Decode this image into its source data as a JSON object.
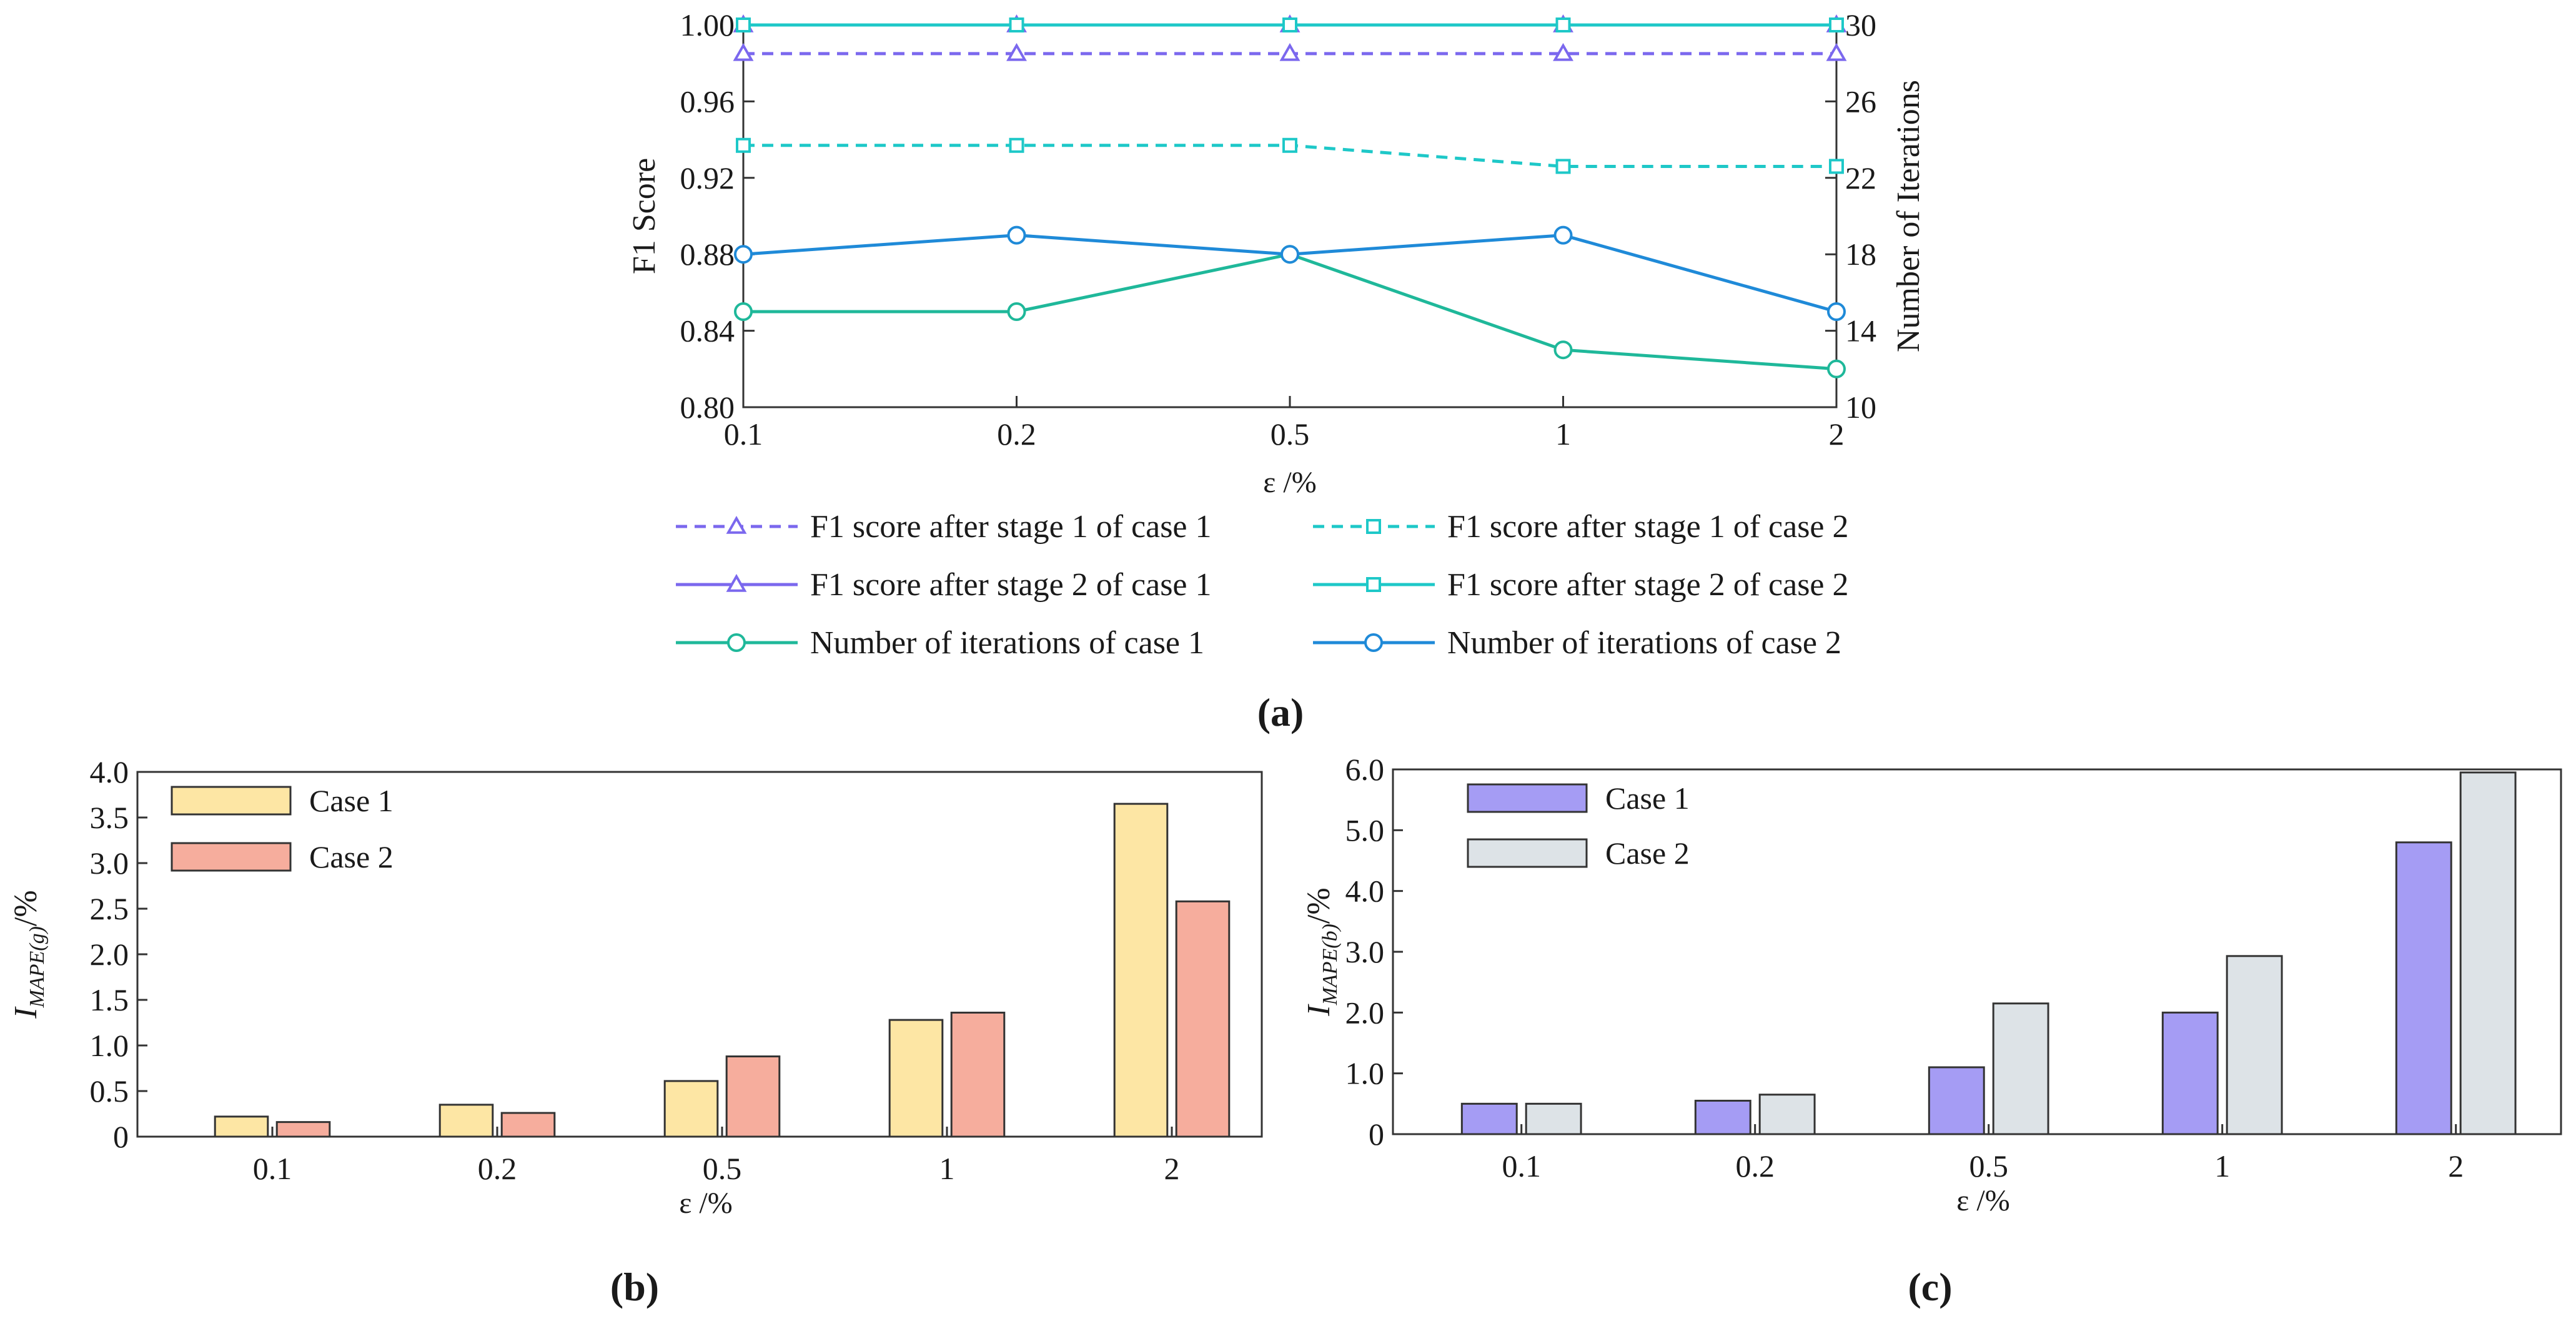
{
  "chart_data": [
    {
      "panel": "(a)",
      "type": "line",
      "x_categories": [
        "0.1",
        "0.2",
        "0.5",
        "1",
        "2"
      ],
      "xlabel": "ε /%",
      "ylabel_left": "F1 Score",
      "ylabel_right": "Number of Iterations",
      "ylim_left": [
        0.8,
        1.0
      ],
      "yticks_left": [
        "0.80",
        "0.84",
        "0.88",
        "0.92",
        "0.96",
        "1.00"
      ],
      "ylim_right": [
        10,
        30
      ],
      "yticks_right": [
        "10",
        "14",
        "18",
        "22",
        "26",
        "30"
      ],
      "grid": false,
      "legend_position": "bottom",
      "series": [
        {
          "name": "F1 score after stage 1 of case 1",
          "axis": "left",
          "values": [
            0.985,
            0.985,
            0.985,
            0.985,
            0.985
          ],
          "color": "#7b68ee",
          "dash": true,
          "marker": "triangle"
        },
        {
          "name": "F1 score after stage 1 of case 2",
          "axis": "left",
          "values": [
            0.937,
            0.937,
            0.937,
            0.926,
            0.926
          ],
          "color": "#1ec8c8",
          "dash": true,
          "marker": "square"
        },
        {
          "name": "F1 score after stage 2 of case 1",
          "axis": "left",
          "values": [
            1.0,
            1.0,
            1.0,
            1.0,
            1.0
          ],
          "color": "#7b68ee",
          "dash": false,
          "marker": "triangle"
        },
        {
          "name": "F1 score after stage 2 of case 2",
          "axis": "left",
          "values": [
            1.0,
            1.0,
            1.0,
            1.0,
            1.0
          ],
          "color": "#1ec8c8",
          "dash": false,
          "marker": "square"
        },
        {
          "name": "Number of iterations of case 1",
          "axis": "right",
          "values": [
            15,
            15,
            18,
            13,
            12
          ],
          "color": "#1fb89a",
          "dash": false,
          "marker": "circle"
        },
        {
          "name": "Number of iterations of case 2",
          "axis": "right",
          "values": [
            18,
            19,
            18,
            19,
            15
          ],
          "color": "#1f8ad8",
          "dash": false,
          "marker": "circle"
        }
      ]
    },
    {
      "panel": "(b)",
      "type": "bar",
      "categories": [
        "0.1",
        "0.2",
        "0.5",
        "1",
        "2"
      ],
      "xlabel": "ε /%",
      "ylabel_main": "I",
      "ylabel_sub": "MAPE(g)",
      "ylabel_suffix": "/%",
      "ylim": [
        0,
        4.0
      ],
      "yticks": [
        "0",
        "0.5",
        "1.0",
        "1.5",
        "2.0",
        "2.5",
        "3.0",
        "3.5",
        "4.0"
      ],
      "legend_position": "top-left",
      "series": [
        {
          "name": "Case 1",
          "values": [
            0.22,
            0.35,
            0.61,
            1.28,
            3.65
          ],
          "color": "#fde6a4"
        },
        {
          "name": "Case 2",
          "values": [
            0.16,
            0.26,
            0.88,
            1.36,
            2.58
          ],
          "color": "#f6ad9d"
        }
      ]
    },
    {
      "panel": "(c)",
      "type": "bar",
      "categories": [
        "0.1",
        "0.2",
        "0.5",
        "1",
        "2"
      ],
      "xlabel": "ε /%",
      "ylabel_main": "I",
      "ylabel_sub": "MAPE(b)",
      "ylabel_suffix": "/%",
      "ylim": [
        0,
        6.0
      ],
      "yticks": [
        "0",
        "1.0",
        "2.0",
        "3.0",
        "4.0",
        "5.0",
        "6.0"
      ],
      "legend_position": "top-left",
      "series": [
        {
          "name": "Case 1",
          "values": [
            0.5,
            0.55,
            1.1,
            2.0,
            4.8
          ],
          "color": "#a59cf4"
        },
        {
          "name": "Case 2",
          "values": [
            0.5,
            0.65,
            2.15,
            2.93,
            5.95
          ],
          "color": "#dde3e7"
        }
      ]
    }
  ]
}
